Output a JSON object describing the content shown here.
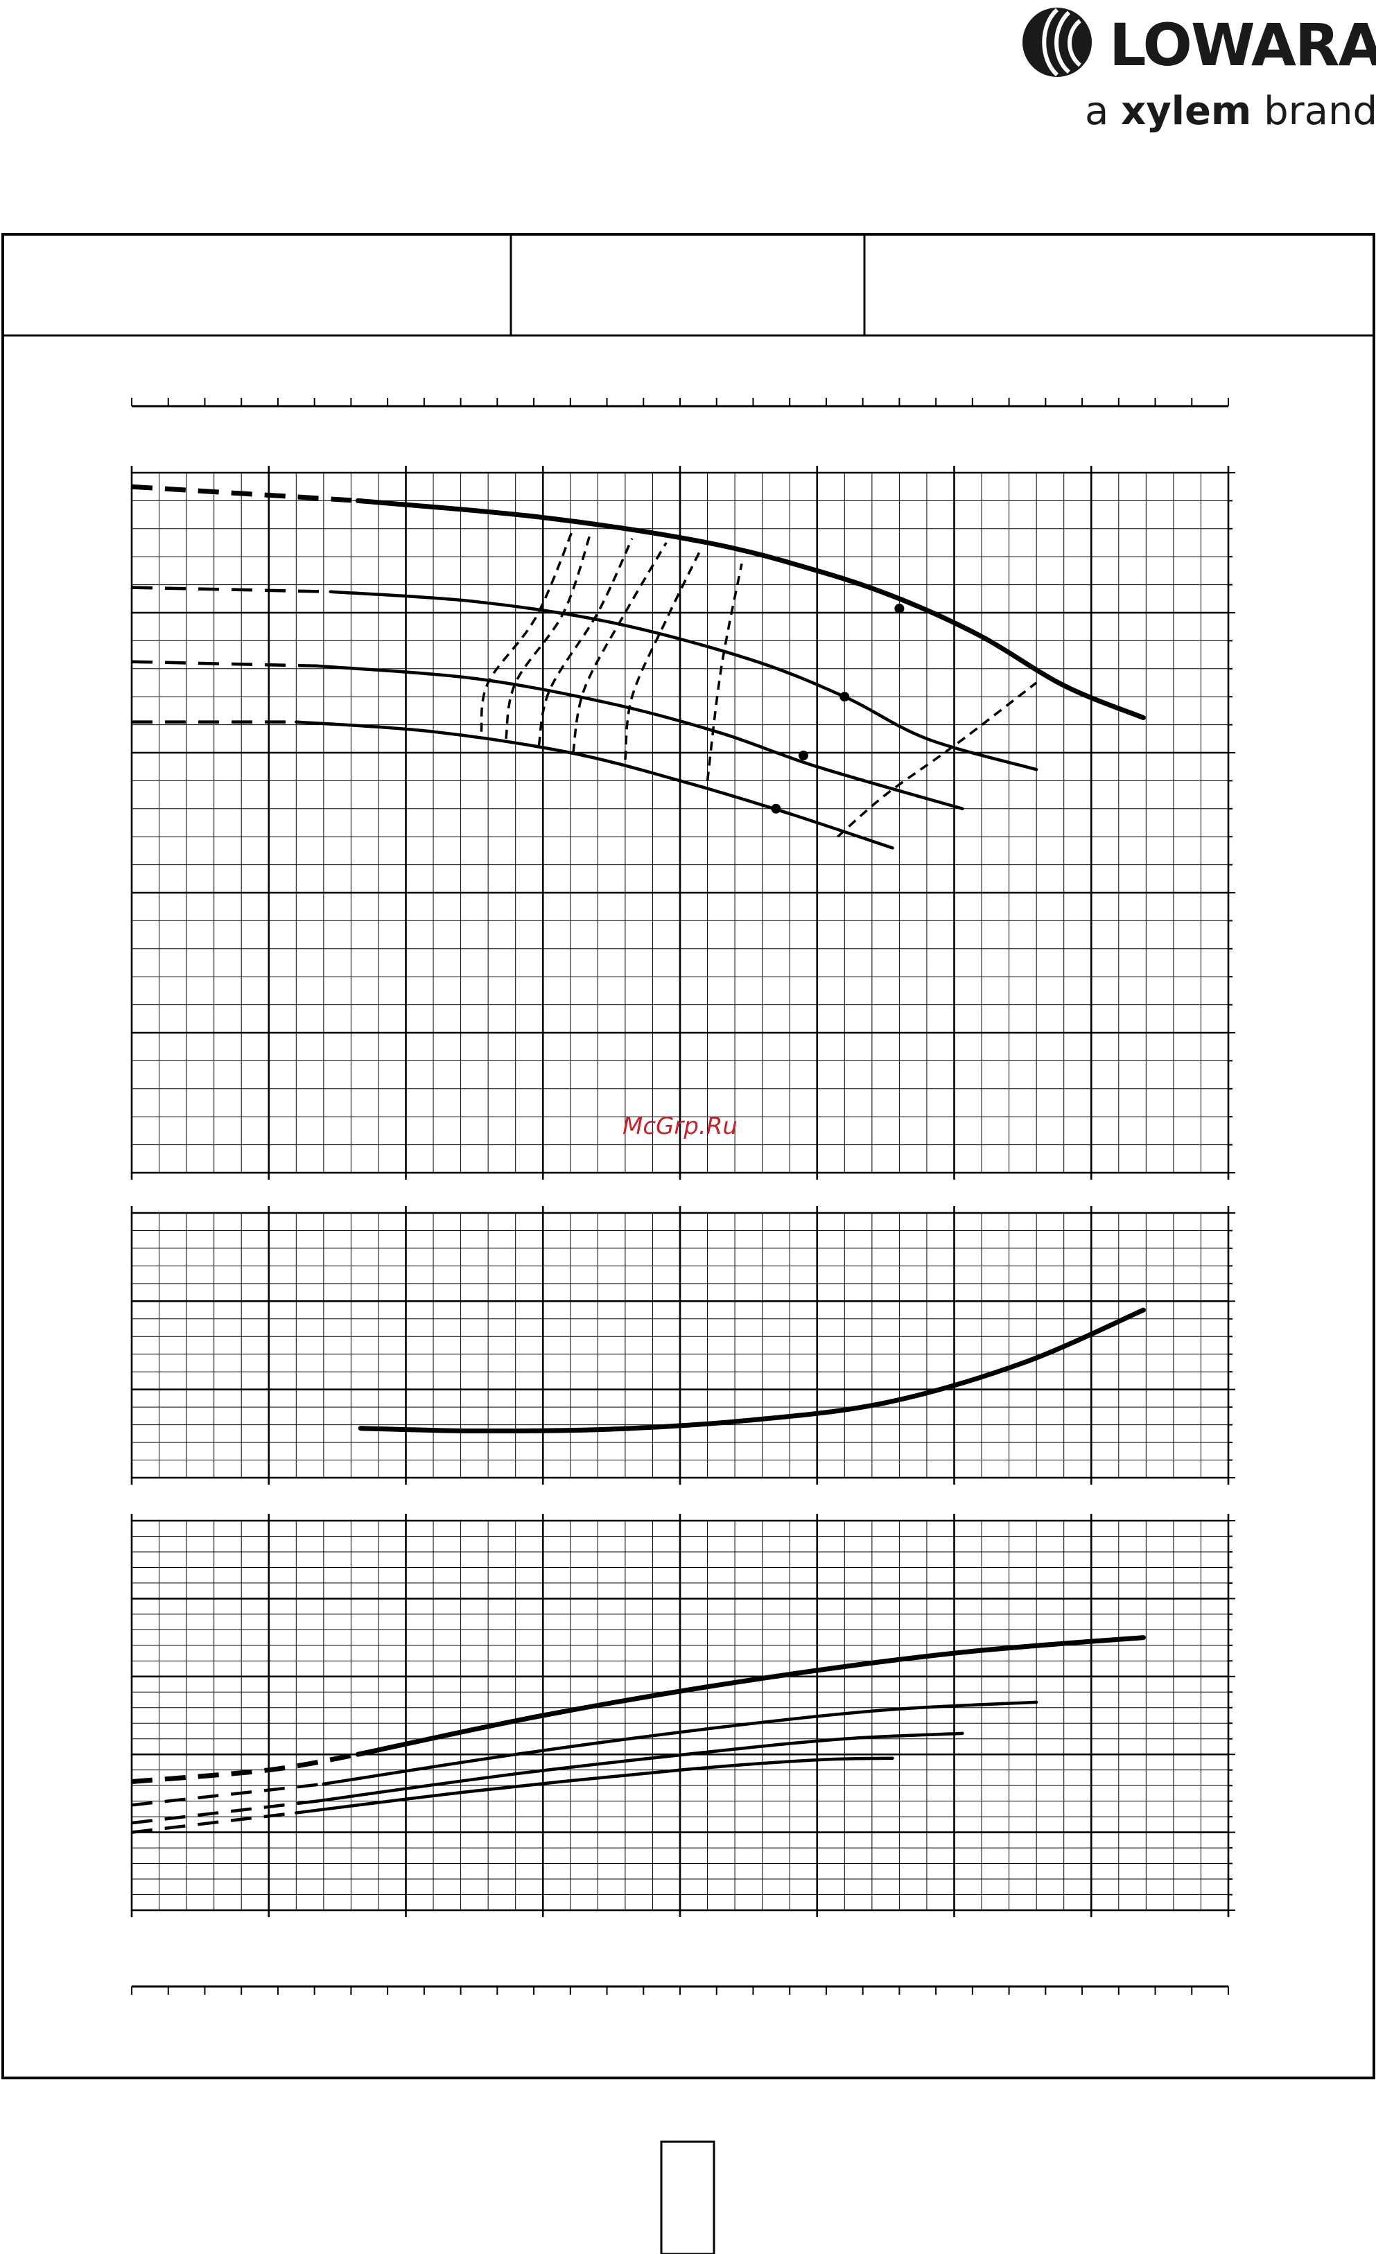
{
  "logo": {
    "brand": "LOWARA",
    "tagline_prefix": "a ",
    "tagline_bold": "xylem",
    "tagline_suffix": " brand"
  },
  "watermark": "McGrp.Ru",
  "colors": {
    "ink": "#000000",
    "watermark": "#c8232c"
  },
  "chart_data": [
    {
      "type": "line",
      "panel": "head",
      "xlim": [
        0,
        8
      ],
      "ylim": [
        0,
        5
      ],
      "grid": true,
      "series": [
        {
          "style": "thick",
          "dashed_until": 1.65,
          "points": [
            [
              0,
              4.9
            ],
            [
              1.65,
              4.8
            ],
            [
              3,
              4.68
            ],
            [
              4.2,
              4.5
            ],
            [
              5,
              4.3
            ],
            [
              5.6,
              4.1
            ],
            [
              6.2,
              3.83
            ],
            [
              6.8,
              3.48
            ],
            [
              7.38,
              3.25
            ]
          ]
        },
        {
          "style": "thin",
          "dashed_until": 1.45,
          "points": [
            [
              0,
              4.18
            ],
            [
              1.45,
              4.15
            ],
            [
              2.5,
              4.08
            ],
            [
              3.5,
              3.93
            ],
            [
              4.5,
              3.67
            ],
            [
              5.2,
              3.4
            ],
            [
              5.8,
              3.1
            ],
            [
              6.6,
              2.88
            ]
          ]
        },
        {
          "style": "thin",
          "dashed_until": 1.35,
          "points": [
            [
              0,
              3.65
            ],
            [
              1.35,
              3.62
            ],
            [
              2.5,
              3.53
            ],
            [
              3.5,
              3.35
            ],
            [
              4.3,
              3.14
            ],
            [
              5,
              2.9
            ],
            [
              6.06,
              2.6
            ]
          ]
        },
        {
          "style": "thin",
          "dashed_until": 1.2,
          "points": [
            [
              0,
              3.22
            ],
            [
              1.2,
              3.22
            ],
            [
              2.2,
              3.15
            ],
            [
              3.2,
              3.0
            ],
            [
              4,
              2.8
            ],
            [
              4.75,
              2.58
            ],
            [
              5.55,
              2.32
            ]
          ]
        }
      ],
      "markers": [
        [
          5.6,
          4.03
        ],
        [
          5.2,
          3.4
        ],
        [
          4.9,
          2.98
        ],
        [
          4.7,
          2.6
        ]
      ],
      "dashed_curves": [
        [
          [
            2.55,
            3.15
          ],
          [
            2.6,
            3.5
          ],
          [
            2.95,
            3.97
          ],
          [
            3.22,
            4.6
          ]
        ],
        [
          [
            2.73,
            3.1
          ],
          [
            2.8,
            3.5
          ],
          [
            3.15,
            4.0
          ],
          [
            3.35,
            4.58
          ]
        ],
        [
          [
            2.97,
            3.05
          ],
          [
            3.05,
            3.45
          ],
          [
            3.4,
            4.0
          ],
          [
            3.65,
            4.53
          ]
        ],
        [
          [
            3.22,
            3.0
          ],
          [
            3.3,
            3.45
          ],
          [
            3.6,
            4.0
          ],
          [
            3.9,
            4.5
          ]
        ],
        [
          [
            3.6,
            2.95
          ],
          [
            3.65,
            3.4
          ],
          [
            3.9,
            3.95
          ],
          [
            4.15,
            4.45
          ]
        ],
        [
          [
            4.2,
            2.8
          ],
          [
            4.3,
            3.6
          ],
          [
            4.45,
            4.35
          ]
        ],
        [
          [
            5.15,
            2.4
          ],
          [
            5.5,
            2.7
          ],
          [
            6.0,
            3.05
          ],
          [
            6.6,
            3.5
          ]
        ]
      ]
    },
    {
      "type": "line",
      "panel": "efficiency",
      "xlim": [
        0,
        8
      ],
      "ylim": [
        0,
        3
      ],
      "grid": true,
      "series": [
        {
          "style": "thick",
          "dashed_until": 0,
          "points": [
            [
              1.67,
              0.56
            ],
            [
              2.5,
              0.53
            ],
            [
              3.5,
              0.55
            ],
            [
              4.5,
              0.65
            ],
            [
              5.5,
              0.85
            ],
            [
              6.5,
              1.3
            ],
            [
              7.38,
              1.9
            ]
          ]
        }
      ]
    },
    {
      "type": "line",
      "panel": "power",
      "xlim": [
        0,
        8
      ],
      "ylim": [
        0,
        5
      ],
      "grid": true,
      "series": [
        {
          "style": "thick",
          "dashed_until": 1.65,
          "points": [
            [
              0,
              1.65
            ],
            [
              1.0,
              1.8
            ],
            [
              1.65,
              2.0
            ],
            [
              3.0,
              2.5
            ],
            [
              4.5,
              2.95
            ],
            [
              6.0,
              3.3
            ],
            [
              7.38,
              3.5
            ]
          ]
        },
        {
          "style": "thin",
          "dashed_until": 1.4,
          "points": [
            [
              0,
              1.35
            ],
            [
              1.4,
              1.62
            ],
            [
              2.8,
              2.0
            ],
            [
              4.3,
              2.35
            ],
            [
              5.5,
              2.57
            ],
            [
              6.6,
              2.67
            ]
          ]
        },
        {
          "style": "thin",
          "dashed_until": 1.35,
          "points": [
            [
              0,
              1.12
            ],
            [
              1.35,
              1.4
            ],
            [
              2.8,
              1.75
            ],
            [
              4.2,
              2.03
            ],
            [
              5.2,
              2.2
            ],
            [
              6.06,
              2.27
            ]
          ]
        },
        {
          "style": "thin",
          "dashed_until": 1.2,
          "points": [
            [
              0,
              1.0
            ],
            [
              1.2,
              1.25
            ],
            [
              2.5,
              1.53
            ],
            [
              4.0,
              1.8
            ],
            [
              5.0,
              1.93
            ],
            [
              5.55,
              1.95
            ]
          ]
        }
      ]
    }
  ]
}
